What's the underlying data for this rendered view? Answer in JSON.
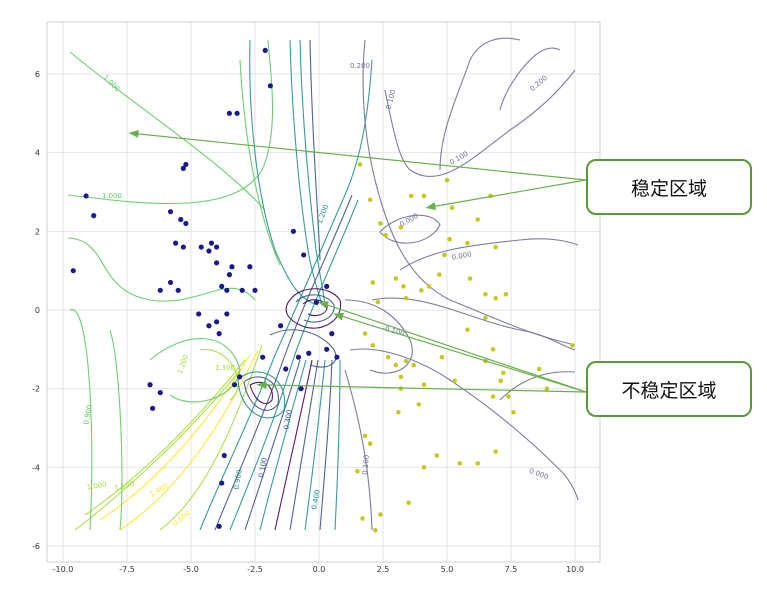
{
  "chart_data": {
    "type": "scatter",
    "title": "",
    "xlabel": "",
    "ylabel": "",
    "xlim": [
      -10.5,
      10.5
    ],
    "ylim": [
      -6.2,
      7.0
    ],
    "grid": true,
    "x_ticks": [
      -10.0,
      -7.5,
      -5.0,
      -2.5,
      0.0,
      2.5,
      5.0,
      7.5,
      10.0
    ],
    "x_tick_labels": [
      "-10.0",
      "-7.5",
      "-5.0",
      "-2.5",
      "0.0",
      "2.5",
      "5.0",
      "7.5",
      "10.0"
    ],
    "y_ticks": [
      -6,
      -4,
      -2,
      0,
      2,
      4,
      6
    ],
    "y_tick_labels": [
      "-6",
      "-4",
      "-2",
      "0",
      "2",
      "4",
      "6"
    ],
    "series": [
      {
        "color": "#1a1a8c",
        "points": [
          [
            -9.6,
            1.0
          ],
          [
            -9.1,
            2.9
          ],
          [
            -8.8,
            2.4
          ],
          [
            -6.2,
            -2.1
          ],
          [
            -6.6,
            -1.9
          ],
          [
            -6.5,
            -2.5
          ],
          [
            -5.8,
            2.5
          ],
          [
            -5.6,
            1.7
          ],
          [
            -5.4,
            2.3
          ],
          [
            -5.3,
            1.6
          ],
          [
            -5.2,
            2.2
          ],
          [
            -5.2,
            3.7
          ],
          [
            -4.6,
            1.6
          ],
          [
            -4.3,
            1.5
          ],
          [
            -4.2,
            1.7
          ],
          [
            -4.0,
            1.6
          ],
          [
            -4.0,
            1.2
          ],
          [
            -3.8,
            0.6
          ],
          [
            -3.6,
            0.5
          ],
          [
            -3.5,
            0.9
          ],
          [
            -3.4,
            1.1
          ],
          [
            -3.0,
            0.5
          ],
          [
            -2.7,
            1.1
          ],
          [
            -2.5,
            0.5
          ],
          [
            -4.7,
            -0.1
          ],
          [
            -4.3,
            -0.4
          ],
          [
            -4.0,
            -0.3
          ],
          [
            -6.2,
            0.5
          ],
          [
            -5.5,
            0.5
          ],
          [
            -5.8,
            0.7
          ],
          [
            -3.9,
            -0.6
          ],
          [
            -3.6,
            -0.1
          ],
          [
            -3.5,
            5.0
          ],
          [
            -3.2,
            5.0
          ],
          [
            -2.1,
            6.6
          ],
          [
            -1.9,
            5.7
          ],
          [
            -1.0,
            2.0
          ],
          [
            -0.6,
            1.4
          ],
          [
            -1.5,
            -0.4
          ],
          [
            -2.2,
            -1.2
          ],
          [
            -1.3,
            -1.5
          ],
          [
            -0.8,
            -1.2
          ],
          [
            -0.7,
            -2.0
          ],
          [
            -3.3,
            -1.9
          ],
          [
            -3.1,
            -1.7
          ],
          [
            -3.7,
            -3.7
          ],
          [
            -3.8,
            -4.4
          ],
          [
            -3.9,
            -5.5
          ],
          [
            -0.1,
            0.2
          ],
          [
            0.3,
            0.6
          ],
          [
            0.5,
            -0.6
          ],
          [
            0.7,
            -1.2
          ],
          [
            0.3,
            -1.0
          ],
          [
            -0.4,
            -1.1
          ],
          [
            -5.3,
            3.6
          ]
        ]
      },
      {
        "color": "#c7c91a",
        "points": [
          [
            1.6,
            3.7
          ],
          [
            2.0,
            2.8
          ],
          [
            2.4,
            2.2
          ],
          [
            2.6,
            1.9
          ],
          [
            3.2,
            2.1
          ],
          [
            3.6,
            2.9
          ],
          [
            4.1,
            2.9
          ],
          [
            5.0,
            3.3
          ],
          [
            5.2,
            2.6
          ],
          [
            5.1,
            1.8
          ],
          [
            4.9,
            1.4
          ],
          [
            5.8,
            1.7
          ],
          [
            6.2,
            2.3
          ],
          [
            6.7,
            2.9
          ],
          [
            6.9,
            1.6
          ],
          [
            7.3,
            0.4
          ],
          [
            5.9,
            0.8
          ],
          [
            6.5,
            0.4
          ],
          [
            6.9,
            0.3
          ],
          [
            4.7,
            0.9
          ],
          [
            4.3,
            0.6
          ],
          [
            3.3,
            0.6
          ],
          [
            3.4,
            0.3
          ],
          [
            4.0,
            0.5
          ],
          [
            2.1,
            0.7
          ],
          [
            2.3,
            0.2
          ],
          [
            3.0,
            0.8
          ],
          [
            1.8,
            -0.6
          ],
          [
            2.1,
            -0.9
          ],
          [
            2.7,
            -1.2
          ],
          [
            3.0,
            -1.4
          ],
          [
            3.2,
            -1.7
          ],
          [
            3.4,
            -1.3
          ],
          [
            3.7,
            -1.4
          ],
          [
            4.1,
            -1.9
          ],
          [
            3.2,
            -2.0
          ],
          [
            3.9,
            -2.4
          ],
          [
            4.8,
            -1.2
          ],
          [
            5.3,
            -1.8
          ],
          [
            6.5,
            -1.3
          ],
          [
            6.8,
            -1.0
          ],
          [
            7.2,
            -1.6
          ],
          [
            7.4,
            -2.2
          ],
          [
            6.8,
            -2.2
          ],
          [
            7.6,
            -2.6
          ],
          [
            8.6,
            -1.5
          ],
          [
            9.9,
            -0.9
          ],
          [
            3.1,
            -2.6
          ],
          [
            4.1,
            -4.0
          ],
          [
            4.6,
            -3.7
          ],
          [
            5.5,
            -3.9
          ],
          [
            6.2,
            -3.9
          ],
          [
            6.9,
            -3.6
          ],
          [
            1.8,
            -3.2
          ],
          [
            2.0,
            -3.4
          ],
          [
            1.5,
            -4.1
          ],
          [
            1.7,
            -5.3
          ],
          [
            2.2,
            -5.6
          ],
          [
            2.4,
            -5.2
          ],
          [
            3.5,
            -4.9
          ],
          [
            7.1,
            -1.8
          ],
          [
            8.9,
            -2.0
          ],
          [
            5.8,
            -0.5
          ],
          [
            6.5,
            -0.2
          ]
        ]
      }
    ],
    "contour_labels": [
      "1.000",
      "1.000",
      "0.200",
      "0.100",
      "0.200",
      "0.100",
      "1.200",
      "0.000",
      "-0.100",
      "0.000",
      "0.000",
      "1.300",
      "1.200",
      "0.900",
      "1.000",
      "1.100",
      "1.400",
      "0.100",
      "0.400",
      "0.900",
      "0.300",
      "0.600",
      "0.100"
    ],
    "annotations": [
      {
        "text": "稳定区域",
        "target_points": [
          [
            -7.4,
            4.5
          ],
          [
            4.2,
            2.6
          ]
        ]
      },
      {
        "text": "不稳定区域",
        "target_points": [
          [
            0.0,
            0.2
          ],
          [
            -2.4,
            -1.9
          ],
          [
            0.6,
            -0.1
          ]
        ]
      }
    ]
  },
  "colors": {
    "background": "#ffffff",
    "grid": "#e4e4e4",
    "stable_points": "#1a1a8c",
    "unstable_points": "#c7c91a",
    "contour_palette": [
      "#440154",
      "#3b528b",
      "#21918c",
      "#5ec962",
      "#a5db36",
      "#fde725"
    ],
    "contour_gray": "#6b6f96",
    "arrow": "#6ab04c",
    "callout_border": "#5a9a3a"
  }
}
